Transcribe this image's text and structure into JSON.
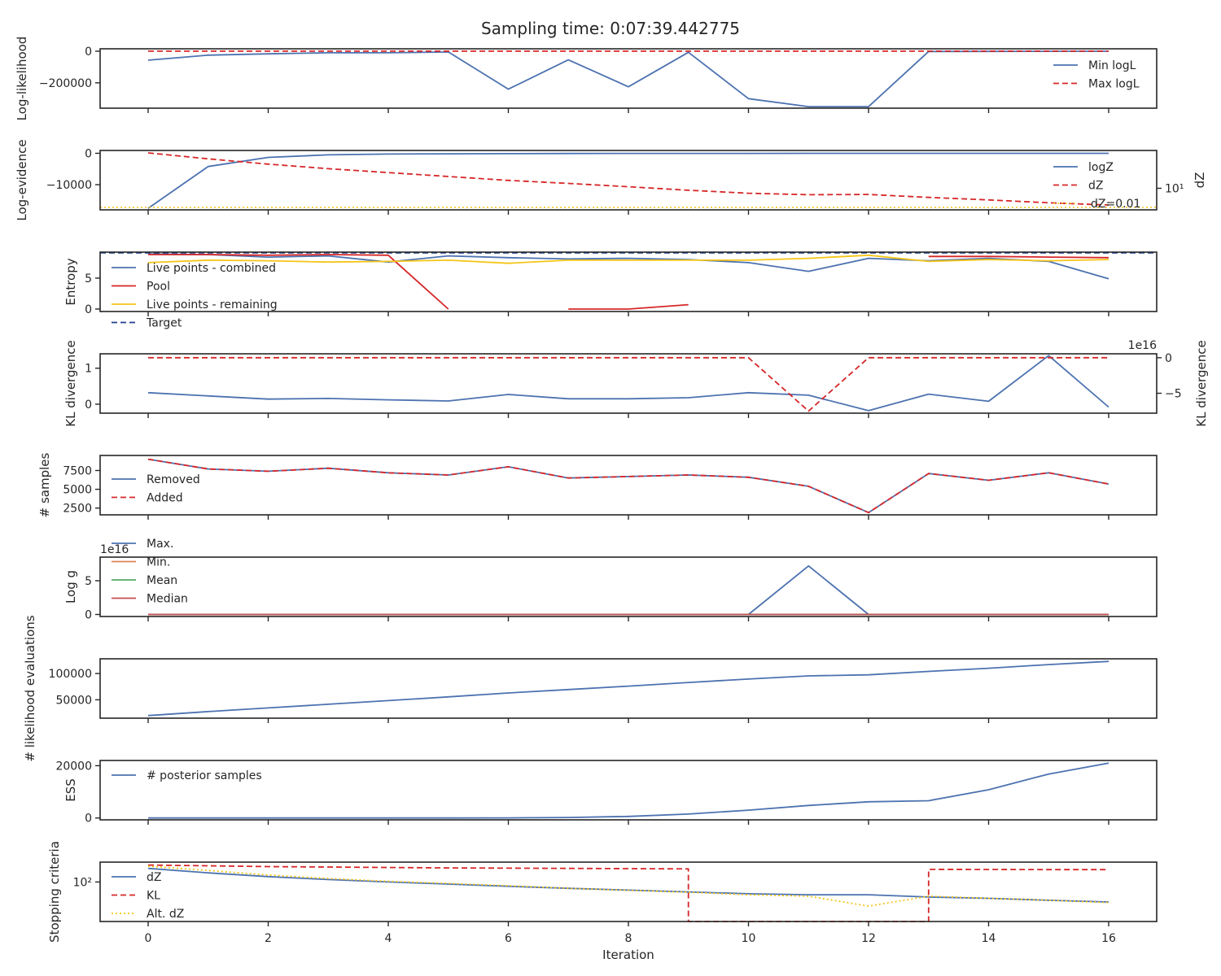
{
  "figure": {
    "title": "Sampling time: 0:07:39.442775",
    "xlabel": "Iteration",
    "xticks": [
      0,
      2,
      4,
      6,
      8,
      10,
      12,
      14,
      16
    ],
    "xlim": [
      -0.8,
      16.8
    ]
  },
  "colors": {
    "blue": "#4c72b0",
    "red": "#d62728",
    "gold": "#f5c518",
    "orange": "#dd8452",
    "green": "#55a868",
    "brick": "#c44e52",
    "navy": "#1f3f8f"
  },
  "chart_data": [
    {
      "type": "line",
      "ylabel": "Log-likelihood",
      "ylim": [
        -360000,
        15000
      ],
      "yticks": [
        0,
        -200000
      ],
      "ytick_labels": [
        "0",
        "−200000"
      ],
      "legend": "right",
      "series": [
        {
          "name": "Min logL",
          "style": "solid",
          "color": "blue",
          "x": [
            0,
            1,
            2,
            3,
            4,
            5,
            6,
            7,
            8,
            9,
            10,
            11,
            12,
            13,
            14,
            15,
            16
          ],
          "y": [
            -57000,
            -25000,
            -17000,
            -10000,
            -10000,
            -5000,
            -240000,
            -55000,
            -225000,
            -7000,
            -300000,
            -350000,
            -350000,
            -2000,
            -1500,
            -1000,
            -500
          ]
        },
        {
          "name": "Max logL",
          "style": "dashed",
          "color": "red",
          "x": [
            0,
            1,
            2,
            3,
            4,
            5,
            6,
            7,
            8,
            9,
            10,
            11,
            12,
            13,
            14,
            15,
            16
          ],
          "y": [
            0,
            0,
            0,
            0,
            0,
            0,
            0,
            0,
            0,
            0,
            0,
            0,
            0,
            0,
            0,
            0,
            0
          ]
        }
      ]
    },
    {
      "type": "line",
      "ylabel": "Log-evidence",
      "ylim": [
        -18000,
        900
      ],
      "yticks": [
        0,
        -10000
      ],
      "ytick_labels": [
        "0",
        "−10000"
      ],
      "ylabel_right": "dZ",
      "yscale_right": "log",
      "ylim_right": [
        4,
        50
      ],
      "yticks_right": [
        10
      ],
      "ytick_labels_right": [
        "10¹"
      ],
      "threshold_label": "dZ=0.01",
      "legend": "right",
      "series": [
        {
          "name": "logZ",
          "style": "solid",
          "color": "blue",
          "x": [
            0,
            1,
            2,
            3,
            4,
            5,
            6,
            7,
            8,
            9,
            10,
            11,
            12,
            13,
            14,
            15,
            16
          ],
          "y": [
            -17500,
            -4200,
            -1300,
            -500,
            -250,
            -150,
            -100,
            -60,
            -40,
            -30,
            -20,
            -15,
            -12,
            -10,
            -8,
            -6,
            -5
          ]
        },
        {
          "name": "dZ",
          "style": "dashed",
          "color": "red",
          "axis": "right",
          "x": [
            0,
            1,
            2,
            3,
            4,
            5,
            6,
            7,
            8,
            9,
            10,
            11,
            12,
            13,
            14,
            15,
            16
          ],
          "y": [
            45,
            35,
            28,
            23,
            19.5,
            16.5,
            14,
            12.3,
            10.7,
            9.2,
            8.1,
            7.6,
            7.7,
            6.8,
            6.1,
            5.4,
            4.9
          ]
        }
      ]
    },
    {
      "type": "line",
      "ylabel": "Entropy",
      "ylim": [
        -0.4,
        9.2
      ],
      "yticks": [
        0,
        5
      ],
      "ytick_labels": [
        "0",
        "5"
      ],
      "legend": "left",
      "series": [
        {
          "name": "Live points - combined",
          "style": "solid",
          "color": "blue",
          "x": [
            0,
            1,
            2,
            3,
            4,
            5,
            6,
            7,
            8,
            9,
            10,
            11,
            12,
            13,
            14,
            15,
            16
          ],
          "y": [
            8.9,
            8.8,
            8.4,
            8.6,
            7.6,
            8.6,
            8.3,
            8.1,
            8.2,
            8.0,
            7.5,
            6.1,
            8.2,
            7.8,
            8.2,
            7.7,
            4.9
          ]
        },
        {
          "name": "Pool",
          "style": "solid",
          "color": "red",
          "segments": [
            {
              "x": [
                0,
                1,
                2,
                3,
                4,
                5
              ],
              "y": [
                8.8,
                8.8,
                8.7,
                8.8,
                8.7,
                0.0
              ]
            },
            {
              "x": [
                7,
                8,
                9
              ],
              "y": [
                0.0,
                0.0,
                0.7
              ]
            },
            {
              "x": [
                13,
                14,
                15,
                16
              ],
              "y": [
                8.5,
                8.5,
                8.4,
                8.3
              ]
            }
          ]
        },
        {
          "name": "Live points - remaining",
          "style": "solid",
          "color": "gold",
          "x": [
            0,
            1,
            2,
            3,
            4,
            5,
            6,
            7,
            8,
            9,
            10,
            11,
            12,
            13,
            14,
            15,
            16
          ],
          "y": [
            7.5,
            7.9,
            7.8,
            7.6,
            7.7,
            7.9,
            7.4,
            7.9,
            7.9,
            7.9,
            7.9,
            8.2,
            8.7,
            7.7,
            8.0,
            7.8,
            8.0
          ]
        },
        {
          "name": "Target",
          "style": "dashed",
          "color": "navy",
          "x": [
            -0.8,
            16.8
          ],
          "y": [
            9.1,
            9.1
          ]
        }
      ]
    },
    {
      "type": "line",
      "ylabel": "KL divergence",
      "ylim": [
        -0.25,
        1.4
      ],
      "yticks": [
        0,
        1
      ],
      "ytick_labels": [
        "0",
        "1"
      ],
      "ylabel_right": "KL divergence",
      "ylim_right": [
        -7.8,
        0.55
      ],
      "yticks_right": [
        0,
        -5
      ],
      "ytick_labels_right": [
        "0",
        "−5"
      ],
      "right_offset_label": "1e16",
      "series": [
        {
          "name": "",
          "style": "solid",
          "color": "blue",
          "x": [
            0,
            1,
            2,
            3,
            4,
            5,
            6,
            7,
            8,
            9,
            10,
            11,
            12,
            13,
            14,
            15,
            16
          ],
          "y": [
            0.32,
            0.23,
            0.14,
            0.16,
            0.12,
            0.09,
            0.27,
            0.15,
            0.15,
            0.18,
            0.32,
            0.25,
            -0.18,
            0.28,
            0.08,
            1.35,
            -0.08
          ]
        },
        {
          "name": "",
          "style": "dashed",
          "color": "red",
          "axis": "right",
          "x": [
            0,
            1,
            2,
            3,
            4,
            5,
            6,
            7,
            8,
            9,
            10,
            11,
            12,
            13,
            14,
            15,
            16
          ],
          "y": [
            0,
            0,
            0,
            0,
            0,
            0,
            0,
            0,
            0,
            0,
            0,
            -7.5,
            0,
            0,
            0,
            0,
            0
          ]
        }
      ]
    },
    {
      "type": "line",
      "ylabel": "# samples",
      "ylim": [
        1600,
        9500
      ],
      "yticks": [
        2500,
        5000,
        7500
      ],
      "ytick_labels": [
        "2500",
        "5000",
        "7500"
      ],
      "legend": "left",
      "series": [
        {
          "name": "Removed",
          "style": "solid",
          "color": "blue",
          "x": [
            0,
            1,
            2,
            3,
            4,
            5,
            6,
            7,
            8,
            9,
            10,
            11,
            12,
            13,
            14,
            15,
            16
          ],
          "y": [
            9000,
            7700,
            7400,
            7800,
            7200,
            6900,
            8000,
            6500,
            6700,
            6900,
            6600,
            5400,
            1900,
            7100,
            6200,
            7200,
            5700
          ]
        },
        {
          "name": "Added",
          "style": "dashed",
          "color": "red",
          "x": [
            0,
            1,
            2,
            3,
            4,
            5,
            6,
            7,
            8,
            9,
            10,
            11,
            12,
            13,
            14,
            15,
            16
          ],
          "y": [
            9000,
            7700,
            7400,
            7800,
            7200,
            6900,
            8000,
            6500,
            6700,
            6900,
            6600,
            5400,
            1900,
            7100,
            6200,
            7200,
            5700
          ]
        }
      ]
    },
    {
      "type": "line",
      "ylabel": "Log g",
      "ylim": [
        -0.3,
        8.5
      ],
      "yticks": [
        0,
        5
      ],
      "ytick_labels": [
        "0",
        "5"
      ],
      "offset_label": "1e16",
      "legend": "upper left, outside",
      "series": [
        {
          "name": "Max.",
          "style": "solid",
          "color": "blue",
          "x": [
            0,
            1,
            2,
            3,
            4,
            5,
            6,
            7,
            8,
            9,
            10,
            11,
            12,
            13,
            14,
            15,
            16
          ],
          "y": [
            0,
            0,
            0,
            0,
            0,
            0,
            0,
            0,
            0,
            0,
            0,
            7.2,
            0,
            0,
            0,
            0,
            0
          ]
        },
        {
          "name": "Min.",
          "style": "solid",
          "color": "orange",
          "x": [
            0,
            16
          ],
          "y": [
            0,
            0
          ]
        },
        {
          "name": "Mean",
          "style": "solid",
          "color": "green",
          "x": [
            0,
            16
          ],
          "y": [
            0,
            0
          ]
        },
        {
          "name": "Median",
          "style": "solid",
          "color": "brick",
          "x": [
            0,
            16
          ],
          "y": [
            0,
            0
          ]
        }
      ]
    },
    {
      "type": "line",
      "ylabel": "# likelihood evaluations",
      "ylim": [
        15000,
        128000
      ],
      "yticks": [
        50000,
        100000
      ],
      "ytick_labels": [
        "50000",
        "100000"
      ],
      "series": [
        {
          "name": "",
          "style": "solid",
          "color": "blue",
          "x": [
            0,
            1,
            2,
            3,
            4,
            5,
            6,
            7,
            8,
            9,
            10,
            11,
            12,
            13,
            14,
            15,
            16
          ],
          "y": [
            20000,
            27500,
            34500,
            41500,
            48500,
            55500,
            63000,
            69500,
            76000,
            83000,
            89500,
            95500,
            97500,
            104000,
            110000,
            117000,
            123000
          ]
        }
      ]
    },
    {
      "type": "line",
      "ylabel": "ESS",
      "ylim": [
        -700,
        22000
      ],
      "yticks": [
        0,
        20000
      ],
      "ytick_labels": [
        "0",
        "20000"
      ],
      "legend": "left",
      "series": [
        {
          "name": "# posterior samples",
          "style": "solid",
          "color": "blue",
          "x": [
            0,
            1,
            2,
            3,
            4,
            5,
            6,
            7,
            8,
            9,
            10,
            11,
            12,
            13,
            14,
            15,
            16
          ],
          "y": [
            0,
            0,
            0,
            0,
            0,
            0,
            50,
            200,
            600,
            1500,
            3000,
            4800,
            6200,
            6600,
            10800,
            16800,
            21000
          ]
        }
      ]
    },
    {
      "type": "line",
      "ylabel": "Stopping criteria",
      "yscale": "log",
      "ylim": [
        5,
        450
      ],
      "yticks": [
        100
      ],
      "ytick_labels": [
        "10²"
      ],
      "legend": "left",
      "series": [
        {
          "name": "dZ",
          "style": "solid",
          "color": "blue",
          "x": [
            0,
            1,
            2,
            3,
            4,
            5,
            6,
            7,
            8,
            9,
            10,
            11,
            12,
            13,
            14,
            15,
            16
          ],
          "y": [
            280,
            200,
            150,
            120,
            100,
            85,
            72,
            62,
            54,
            47,
            41,
            38,
            38,
            32,
            29,
            25,
            22
          ]
        },
        {
          "name": "KL",
          "style": "dashed",
          "color": "red",
          "x": [
            0,
            1,
            2,
            3,
            4,
            5,
            6,
            7,
            8,
            9,
            9,
            13,
            13,
            14,
            15,
            16
          ],
          "y": [
            360,
            340,
            320,
            310,
            300,
            290,
            285,
            280,
            275,
            270,
            5,
            5,
            260,
            258,
            255,
            255
          ]
        },
        {
          "name": "Alt. dZ",
          "style": "dotted",
          "color": "gold",
          "x": [
            0,
            1,
            2,
            3,
            4,
            5,
            6,
            7,
            8,
            9,
            10,
            11,
            12,
            13,
            14,
            15,
            16
          ],
          "y": [
            330,
            240,
            170,
            130,
            105,
            90,
            75,
            62,
            53,
            46,
            38,
            34,
            16,
            34,
            29,
            25,
            21
          ]
        }
      ]
    }
  ]
}
